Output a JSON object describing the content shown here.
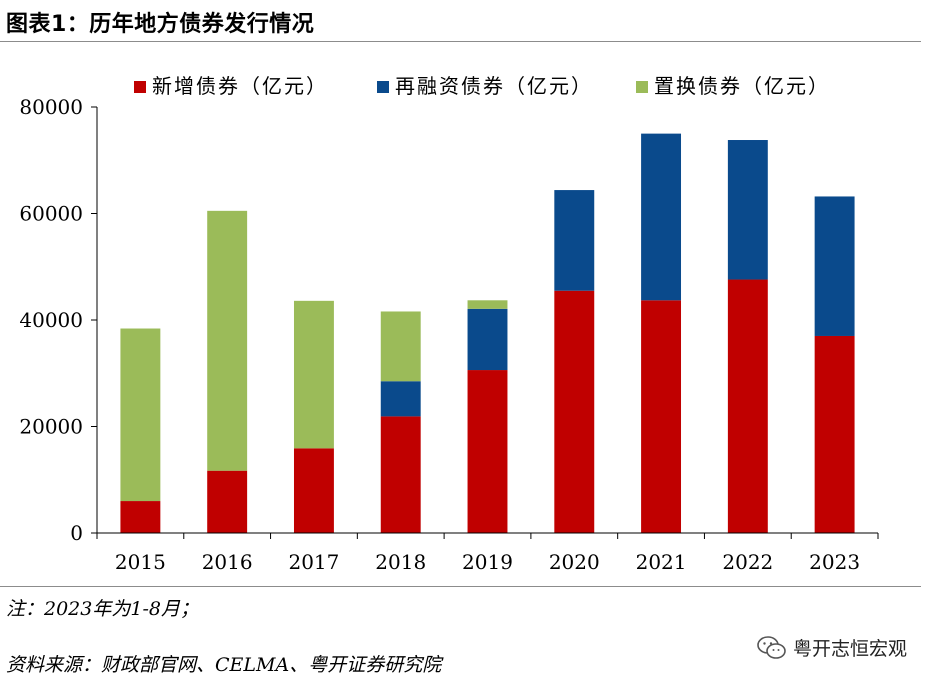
{
  "page": {
    "title": "图表1：历年地方债券发行情况",
    "note": "注：2023年为1-8月；",
    "source": "资料来源：财政部官网、CELMA、粤开证券研究院",
    "watermark": "粤开志恒宏观",
    "watermark_icon": "wechat-icon"
  },
  "chart_data": {
    "type": "bar",
    "stacked": true,
    "title": "",
    "xlabel": "",
    "ylabel": "",
    "categories": [
      "2015",
      "2016",
      "2017",
      "2018",
      "2019",
      "2020",
      "2021",
      "2022",
      "2023"
    ],
    "series": [
      {
        "name": "新增债券（亿元）",
        "color": "#c00000",
        "values": [
          6000,
          11700,
          15900,
          21900,
          30600,
          45500,
          43700,
          47600,
          37000
        ]
      },
      {
        "name": "再融资债券（亿元）",
        "color": "#0a4a8c",
        "values": [
          0,
          0,
          0,
          6600,
          11500,
          18900,
          31300,
          26200,
          26200
        ]
      },
      {
        "name": "置换债券（亿元）",
        "color": "#9bbb59",
        "values": [
          32400,
          48800,
          27700,
          13100,
          1600,
          0,
          0,
          0,
          0
        ]
      }
    ],
    "ylim": [
      0,
      80000
    ],
    "yticks": [
      0,
      20000,
      40000,
      60000,
      80000
    ],
    "legend": "top"
  }
}
